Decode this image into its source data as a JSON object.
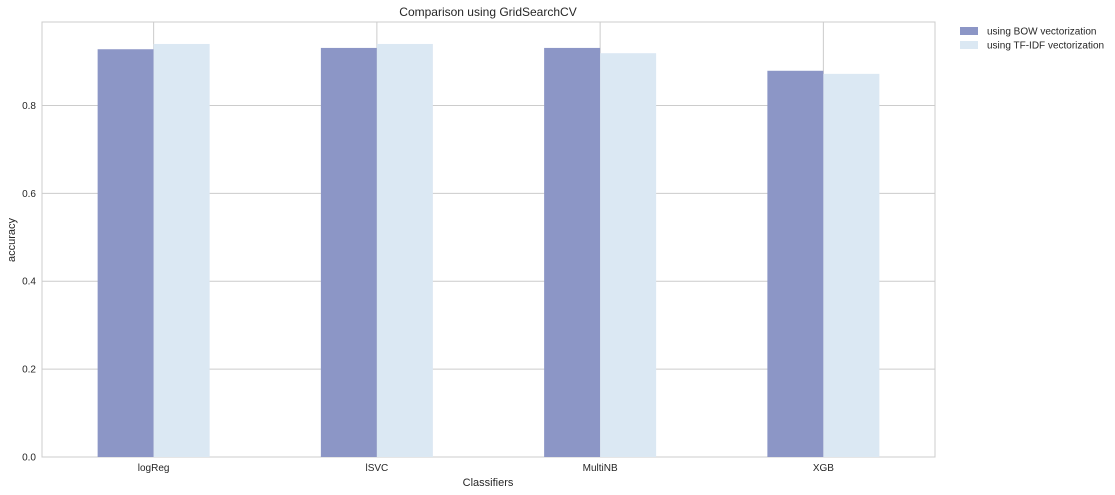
{
  "chart_data": {
    "type": "bar",
    "title": "Comparison using GridSearchCV",
    "xlabel": "Classifiers",
    "ylabel": "accuracy",
    "categories": [
      "logReg",
      "lSVC",
      "MultiNB",
      "XGB"
    ],
    "series": [
      {
        "name": "using BOW vectorization",
        "values": [
          0.928,
          0.931,
          0.931,
          0.879
        ],
        "color": "#8c96c6"
      },
      {
        "name": "using TF-IDF vectorization",
        "values": [
          0.94,
          0.94,
          0.919,
          0.872
        ],
        "color": "#dbe8f3"
      }
    ],
    "ylim": [
      0,
      0.99
    ],
    "yticks": [
      0.0,
      0.2,
      0.4,
      0.6,
      0.8
    ],
    "ytick_labels": [
      "0.0",
      "0.2",
      "0.4",
      "0.6",
      "0.8"
    ],
    "grid": true,
    "legend_position": "outside-top-right"
  }
}
